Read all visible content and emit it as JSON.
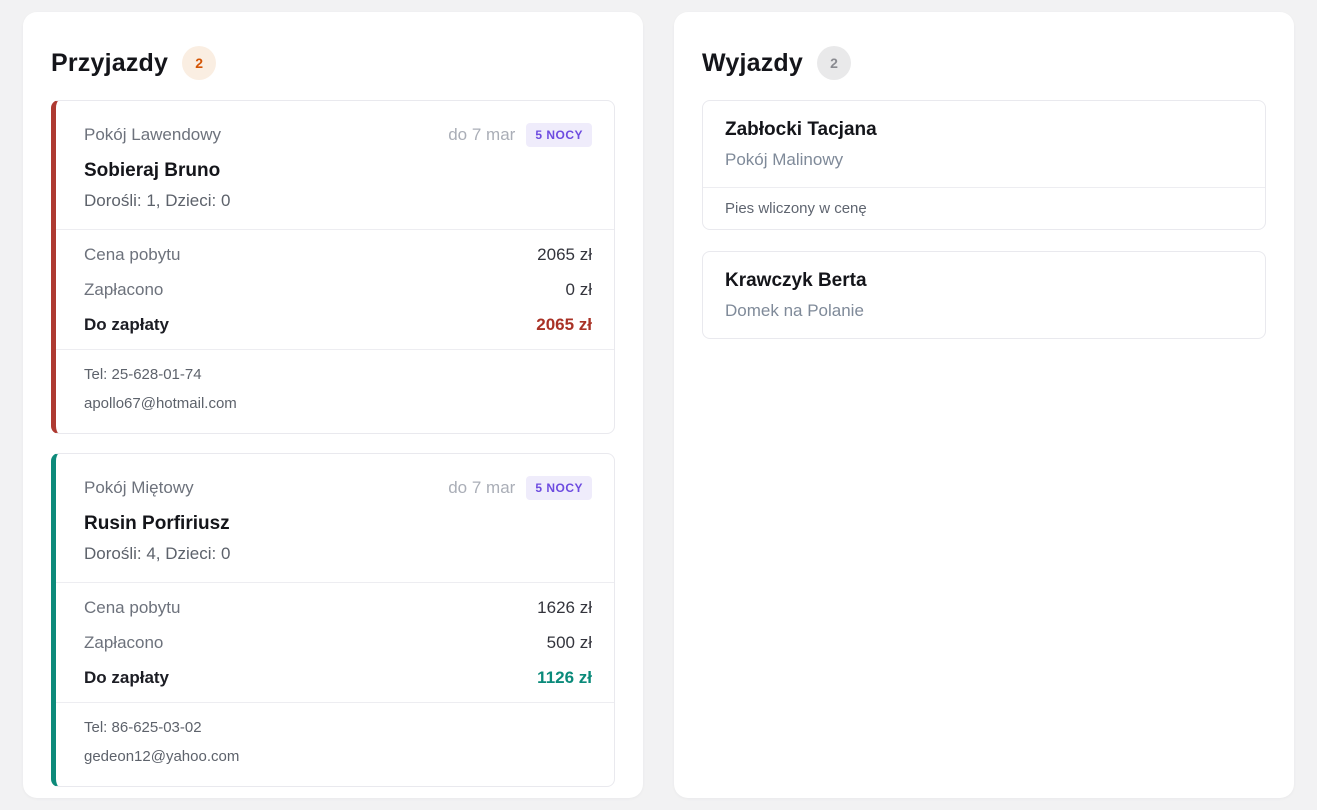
{
  "page": {
    "background": "#f2f2f3"
  },
  "arrivals": {
    "title": "Przyjazdy",
    "count": "2",
    "count_badge": {
      "text_color": "#d45505",
      "bg_color": "#faeee2"
    },
    "nights_badge_colors": {
      "text_color": "#6d4be0",
      "bg_color": "#efecfb"
    },
    "cards": [
      {
        "accent_color": "#ae3a31",
        "room": "Pokój Lawendowy",
        "date_until": "do 7 mar",
        "nights_badge": "5 NOCY",
        "guest": "Sobieraj Bruno",
        "occupancy": "Dorośli: 1, Dzieci: 0",
        "pricing": {
          "rows": [
            {
              "label": "Cena pobytu",
              "value": "2065 zł"
            },
            {
              "label": "Zapłacono",
              "value": "0 zł"
            }
          ],
          "due": {
            "label": "Do zapłaty",
            "value": "2065 zł",
            "color": "#a93226"
          }
        },
        "phone": "Tel: 25-628-01-74",
        "email": "apollo67@hotmail.com"
      },
      {
        "accent_color": "#0d8a7a",
        "room": "Pokój Miętowy",
        "date_until": "do 7 mar",
        "nights_badge": "5 NOCY",
        "guest": "Rusin Porfiriusz",
        "occupancy": "Dorośli: 4, Dzieci: 0",
        "pricing": {
          "rows": [
            {
              "label": "Cena pobytu",
              "value": "1626 zł"
            },
            {
              "label": "Zapłacono",
              "value": "500 zł"
            }
          ],
          "due": {
            "label": "Do zapłaty",
            "value": "1126 zł",
            "color": "#0a8a7a"
          }
        },
        "phone": "Tel: 86-625-03-02",
        "email": "gedeon12@yahoo.com"
      }
    ]
  },
  "departures": {
    "title": "Wyjazdy",
    "count": "2",
    "count_badge": {
      "text_color": "#8a8b91",
      "bg_color": "#e9e9ea"
    },
    "cards": [
      {
        "guest": "Zabłocki Tacjana",
        "room": "Pokój Malinowy",
        "note": "Pies wliczony w cenę"
      },
      {
        "guest": "Krawczyk Berta",
        "room": "Domek na Polanie"
      }
    ]
  }
}
